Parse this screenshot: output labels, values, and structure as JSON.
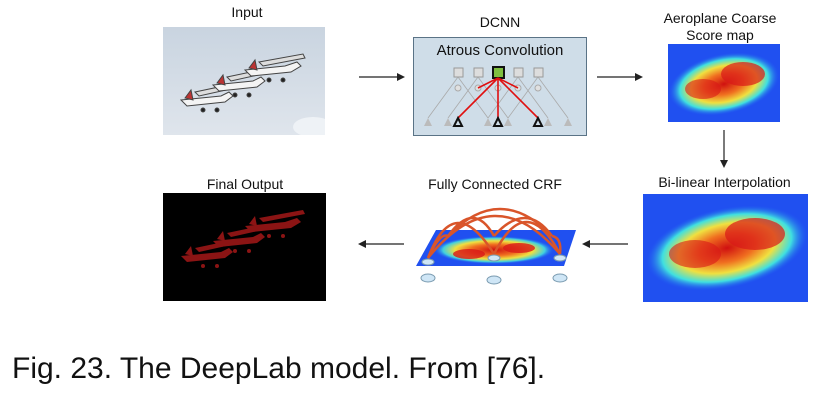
{
  "labels": {
    "input": "Input",
    "dcnn": "DCNN",
    "atrous": "Atrous Convolution",
    "coarse_line1": "Aeroplane Coarse",
    "coarse_line2": "Score map",
    "bilinear": "Bi-linear Interpolation",
    "crf": "Fully Connected CRF",
    "final": "Final Output"
  },
  "caption": "Fig. 23. The DeepLab model. From [76].",
  "colors": {
    "dcnn_bg": "#cfdde8",
    "dcnn_border": "#5a7386",
    "highlight_red": "#e01010",
    "node_gray": "#b8b8b8",
    "heat_blue": "#2050f0",
    "heat_red": "#d01010",
    "mask_red": "#8b1414",
    "crf_arc": "#d9552a"
  },
  "icons": {
    "arrow": "arrow-right",
    "airplanes": "airplanes-photo"
  }
}
